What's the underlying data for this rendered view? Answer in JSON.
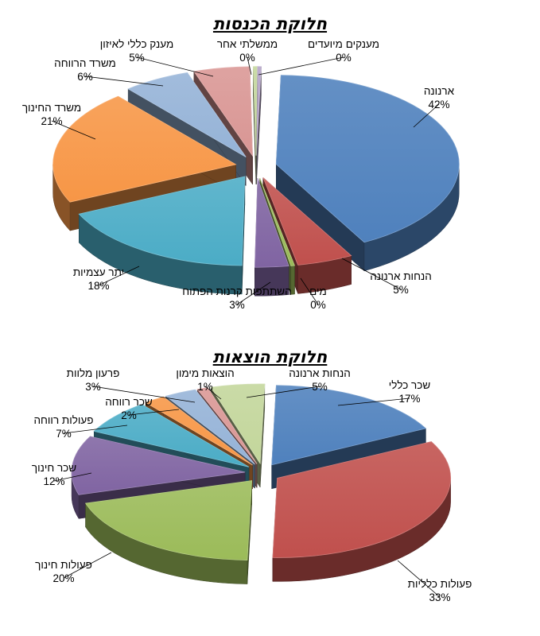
{
  "chart_data": [
    {
      "type": "pie",
      "title": "חלוקת הכנסות",
      "slices": [
        {
          "name": "ארנונה",
          "value": 42,
          "label": "42%",
          "color": "#4f81bd"
        },
        {
          "name": "הנחות ארנונה",
          "value": 5,
          "label": "5%",
          "color": "#c0504d"
        },
        {
          "name": "מים",
          "value": 0,
          "label": "0%",
          "color": "#9bbb59"
        },
        {
          "name": "השתתפות קרנות הפתוח",
          "value": 3,
          "label": "3%",
          "color": "#8064a2"
        },
        {
          "name": "יתר עצמיות",
          "value": 18,
          "label": "18%",
          "color": "#4bacc6"
        },
        {
          "name": "משרד החינוך",
          "value": 21,
          "label": "21%",
          "color": "#f79646"
        },
        {
          "name": "משרד הרווחה",
          "value": 6,
          "label": "6%",
          "color": "#95b3d7"
        },
        {
          "name": "מענק כללי לאיזון",
          "value": 5,
          "label": "5%",
          "color": "#d99694"
        },
        {
          "name": "ממשלתי אחר",
          "value": 0,
          "label": "0%",
          "color": "#c3d69b"
        },
        {
          "name": "מענקים מיועדים",
          "value": 0,
          "label": "0%",
          "color": "#b3a2c7"
        }
      ]
    },
    {
      "type": "pie",
      "title": "חלוקת הוצאות",
      "slices": [
        {
          "name": "שכר כללי",
          "value": 17,
          "label": "17%",
          "color": "#4f81bd"
        },
        {
          "name": "פעולות כלליות",
          "value": 33,
          "label": "33%",
          "color": "#c0504d"
        },
        {
          "name": "פעולות חינוך",
          "value": 20,
          "label": "20%",
          "color": "#9bbb59"
        },
        {
          "name": "שכר חינוך",
          "value": 12,
          "label": "12%",
          "color": "#8064a2"
        },
        {
          "name": "פעולות רווחה",
          "value": 7,
          "label": "7%",
          "color": "#4bacc6"
        },
        {
          "name": "שכר רווחה",
          "value": 2,
          "label": "2%",
          "color": "#f79646"
        },
        {
          "name": "פרעון מלוות",
          "value": 3,
          "label": "3%",
          "color": "#95b3d7"
        },
        {
          "name": "הוצאות מימון",
          "value": 1,
          "label": "1%",
          "color": "#d99694"
        },
        {
          "name": "הנחות ארנונה",
          "value": 5,
          "label": "5%",
          "color": "#c3d69b"
        }
      ]
    }
  ]
}
